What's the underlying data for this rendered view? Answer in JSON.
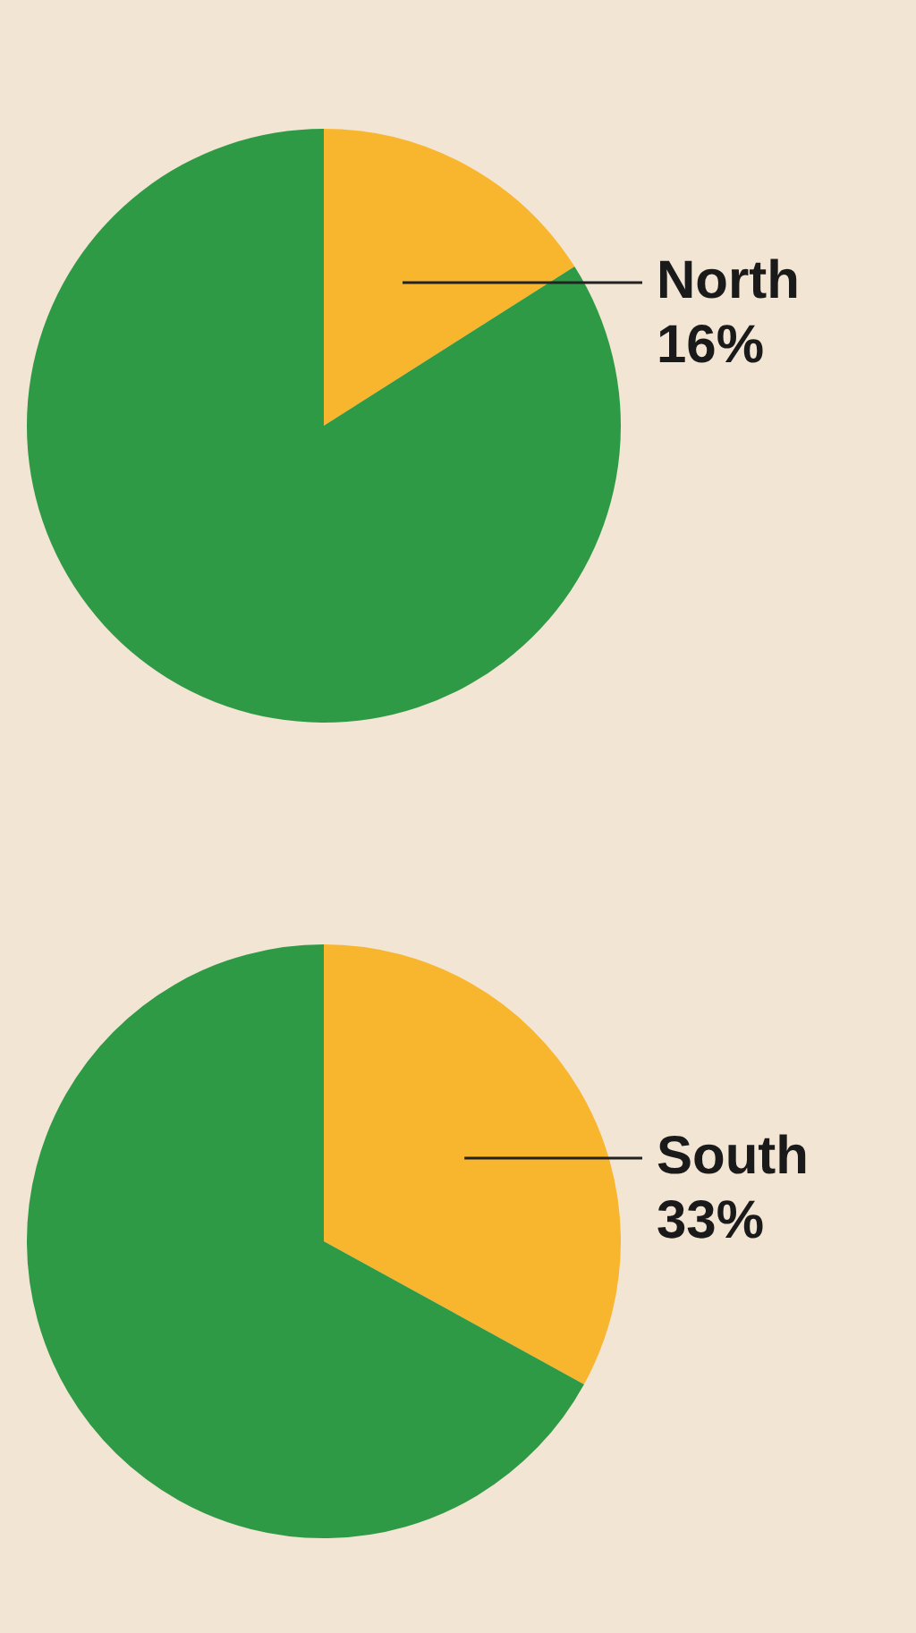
{
  "chart_data": [
    {
      "type": "pie",
      "categories": [
        "North",
        null
      ],
      "values": [
        16,
        84
      ],
      "colors": [
        "#f8b52e",
        "#2f9a46"
      ],
      "value_labels": [
        "16%",
        null
      ],
      "legend": false
    },
    {
      "type": "pie",
      "categories": [
        "South",
        null
      ],
      "values": [
        33,
        67
      ],
      "colors": [
        "#f8b52e",
        "#2f9a46"
      ],
      "value_labels": [
        "33%",
        null
      ],
      "legend": false
    }
  ]
}
